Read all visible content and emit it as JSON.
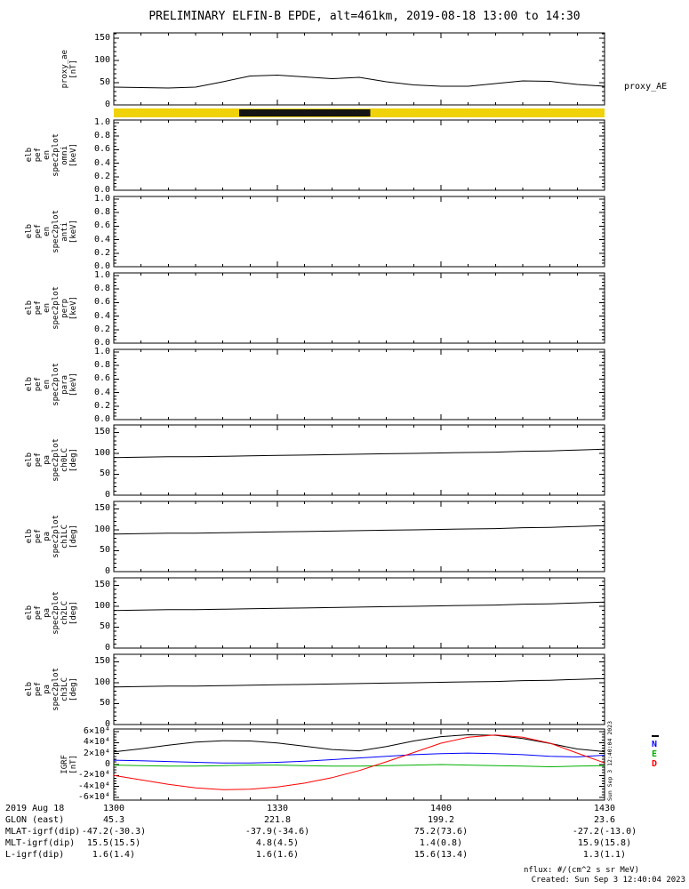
{
  "title": "PRELIMINARY ELFIN-B EPDE, alt=461km, 2019-08-18 13:00 to 14:30",
  "right_axis_label": "proxy_AE",
  "footer": {
    "nflux_note": "nflux: #/(cm^2 s sr MeV)",
    "created": "Created: Sun Sep  3 12:40:04 2023",
    "side_timestamp": "Sun Sep  3 12:40:04 2023"
  },
  "x_minutes": [
    0,
    5,
    10,
    15,
    20,
    25,
    30,
    35,
    40,
    45,
    50,
    55,
    60,
    65,
    70,
    75,
    80,
    85,
    90
  ],
  "x_axis": {
    "major_minutes": [
      0,
      30,
      60,
      90
    ],
    "minor_step_min": 5,
    "labels": [
      "1300",
      "1330",
      "1400",
      "1430"
    ],
    "start": "13:00",
    "end": "14:30"
  },
  "bottom_table": {
    "rows": [
      {
        "label": "2019 Aug 18",
        "values": [
          "1300",
          "1330",
          "1400",
          "1430"
        ]
      },
      {
        "label": "GLON (east)",
        "values": [
          "45.3",
          "221.8",
          "199.2",
          "23.6"
        ]
      },
      {
        "label": "MLAT-igrf(dip)",
        "values": [
          "-47.2(-30.3)",
          "-37.9(-34.6)",
          "75.2(73.6)",
          "-27.2(-13.0)"
        ]
      },
      {
        "label": "MLT-igrf(dip)",
        "values": [
          "15.5(15.5)",
          "4.8(4.5)",
          "1.4(0.8)",
          "15.9(15.8)"
        ]
      },
      {
        "label": "L-igrf(dip)",
        "values": [
          "1.6(1.4)",
          "1.6(1.6)",
          "15.6(13.4)",
          "1.3(1.1)"
        ]
      }
    ]
  },
  "chart_data": [
    {
      "id": "proxy",
      "type": "line",
      "label_lines": [
        "proxy_ae",
        "[nT]"
      ],
      "ylim": [
        0,
        162
      ],
      "ymajor": 50,
      "yminor": 10,
      "yticks": [
        {
          "v": 0,
          "label": "0"
        },
        {
          "v": 50,
          "label": "50"
        },
        {
          "v": 100,
          "label": "100"
        },
        {
          "v": 150,
          "label": "150"
        }
      ],
      "series": [
        {
          "name": "proxy_AE",
          "color": "#000000",
          "values": [
            40,
            39,
            38,
            40,
            52,
            65,
            67,
            63,
            59,
            62,
            52,
            45,
            42,
            42,
            48,
            54,
            53,
            46,
            42
          ]
        }
      ]
    },
    {
      "id": "qbar",
      "type": "interval",
      "base_color": "#f0d20a",
      "segments": [
        {
          "from": 23,
          "to": 47,
          "color": "#141414"
        }
      ]
    },
    {
      "id": "omni",
      "type": "spectrogram-empty",
      "label_lines": [
        "elb",
        "pef",
        "en",
        "spec2plot",
        "omni",
        "[keV]"
      ],
      "ylim": [
        0,
        1.04
      ],
      "ymajor": 0.2,
      "yminor": 0.05,
      "yticks": [
        {
          "v": 1.0,
          "label": "1.0"
        },
        {
          "v": 0.8,
          "label": "0.8"
        },
        {
          "v": 0.6,
          "label": "0.6"
        },
        {
          "v": 0.4,
          "label": "0.4"
        },
        {
          "v": 0.2,
          "label": "0.2"
        },
        {
          "v": 0.0,
          "label": "0.0"
        }
      ],
      "series": []
    },
    {
      "id": "anti",
      "type": "spectrogram-empty",
      "label_lines": [
        "elb",
        "pef",
        "en",
        "spec2plot",
        "anti",
        "[keV]"
      ],
      "ylim": [
        0,
        1.04
      ],
      "ymajor": 0.2,
      "yminor": 0.05,
      "yticks": [
        {
          "v": 1.0,
          "label": "1.0"
        },
        {
          "v": 0.8,
          "label": "0.8"
        },
        {
          "v": 0.6,
          "label": "0.6"
        },
        {
          "v": 0.4,
          "label": "0.4"
        },
        {
          "v": 0.2,
          "label": "0.2"
        },
        {
          "v": 0.0,
          "label": "0.0"
        }
      ],
      "series": []
    },
    {
      "id": "perp",
      "type": "spectrogram-empty",
      "label_lines": [
        "elb",
        "pef",
        "en",
        "spec2plot",
        "perp",
        "[keV]"
      ],
      "ylim": [
        0,
        1.04
      ],
      "ymajor": 0.2,
      "yminor": 0.05,
      "yticks": [
        {
          "v": 1.0,
          "label": "1.0"
        },
        {
          "v": 0.8,
          "label": "0.8"
        },
        {
          "v": 0.6,
          "label": "0.6"
        },
        {
          "v": 0.4,
          "label": "0.4"
        },
        {
          "v": 0.2,
          "label": "0.2"
        },
        {
          "v": 0.0,
          "label": "0.0"
        }
      ],
      "series": []
    },
    {
      "id": "para",
      "type": "spectrogram-empty",
      "label_lines": [
        "elb",
        "pef",
        "en",
        "spec2plot",
        "para",
        "[keV]"
      ],
      "ylim": [
        0,
        1.04
      ],
      "ymajor": 0.2,
      "yminor": 0.05,
      "yticks": [
        {
          "v": 1.0,
          "label": "1.0"
        },
        {
          "v": 0.8,
          "label": "0.8"
        },
        {
          "v": 0.6,
          "label": "0.6"
        },
        {
          "v": 0.4,
          "label": "0.4"
        },
        {
          "v": 0.2,
          "label": "0.2"
        },
        {
          "v": 0.0,
          "label": "0.0"
        }
      ],
      "series": []
    },
    {
      "id": "ch0",
      "type": "line",
      "label_lines": [
        "elb",
        "pef",
        "pa",
        "spec2plot",
        "ch0LC",
        "[deg]"
      ],
      "ylim": [
        0,
        168
      ],
      "ymajor": 50,
      "yminor": 10,
      "yticks": [
        {
          "v": 150,
          "label": "150"
        },
        {
          "v": 100,
          "label": "100"
        },
        {
          "v": 50,
          "label": "50"
        },
        {
          "v": 0,
          "label": "0"
        }
      ],
      "series": [
        {
          "name": "ch0LC",
          "color": "#000000",
          "values": [
            90,
            91,
            92,
            92,
            93,
            94,
            95,
            96,
            97,
            98,
            99,
            100,
            101,
            102,
            103,
            105,
            106,
            108,
            110
          ]
        }
      ]
    },
    {
      "id": "ch1",
      "type": "line",
      "label_lines": [
        "elb",
        "pef",
        "pa",
        "spec2plot",
        "ch1LC",
        "[deg]"
      ],
      "ylim": [
        0,
        168
      ],
      "ymajor": 50,
      "yminor": 10,
      "yticks": [
        {
          "v": 150,
          "label": "150"
        },
        {
          "v": 100,
          "label": "100"
        },
        {
          "v": 50,
          "label": "50"
        },
        {
          "v": 0,
          "label": "0"
        }
      ],
      "series": [
        {
          "name": "ch1LC",
          "color": "#000000",
          "values": [
            90,
            91,
            92,
            92,
            93,
            94,
            95,
            96,
            97,
            98,
            99,
            100,
            101,
            102,
            103,
            105,
            106,
            108,
            110
          ]
        }
      ]
    },
    {
      "id": "ch2",
      "type": "line",
      "label_lines": [
        "elb",
        "pef",
        "pa",
        "spec2plot",
        "ch2LC",
        "[deg]"
      ],
      "ylim": [
        0,
        168
      ],
      "ymajor": 50,
      "yminor": 10,
      "yticks": [
        {
          "v": 150,
          "label": "150"
        },
        {
          "v": 100,
          "label": "100"
        },
        {
          "v": 50,
          "label": "50"
        },
        {
          "v": 0,
          "label": "0"
        }
      ],
      "series": [
        {
          "name": "ch2LC",
          "color": "#000000",
          "values": [
            90,
            91,
            92,
            92,
            93,
            94,
            95,
            96,
            97,
            98,
            99,
            100,
            101,
            102,
            103,
            105,
            106,
            108,
            110
          ]
        }
      ]
    },
    {
      "id": "ch3",
      "type": "line",
      "label_lines": [
        "elb",
        "pef",
        "pa",
        "spec2plot",
        "ch3LC",
        "[deg]"
      ],
      "ylim": [
        0,
        168
      ],
      "ymajor": 50,
      "yminor": 10,
      "yticks": [
        {
          "v": 150,
          "label": "150"
        },
        {
          "v": 100,
          "label": "100"
        },
        {
          "v": 50,
          "label": "50"
        },
        {
          "v": 0,
          "label": "0"
        }
      ],
      "series": [
        {
          "name": "ch3LC",
          "color": "#000000",
          "values": [
            90,
            91,
            92,
            92,
            93,
            94,
            95,
            96,
            97,
            98,
            99,
            100,
            101,
            102,
            103,
            105,
            106,
            108,
            110
          ]
        }
      ]
    },
    {
      "id": "igrf",
      "type": "line",
      "label_lines": [
        "IGRF",
        "[nT]"
      ],
      "ylim": [
        -65000,
        65000
      ],
      "ymajor": 20000,
      "yminor": 5000,
      "yticks": [
        {
          "v": 60000,
          "label": "6×10⁴"
        },
        {
          "v": 40000,
          "label": "4×10⁴"
        },
        {
          "v": 20000,
          "label": "2×10⁴"
        },
        {
          "v": 0,
          "label": "0"
        },
        {
          "v": -20000,
          "label": "-2×10⁴"
        },
        {
          "v": -40000,
          "label": "-4×10⁴"
        },
        {
          "v": -60000,
          "label": "-6×10⁴"
        }
      ],
      "series": [
        {
          "name": "B",
          "color": "#000000",
          "values": [
            23000,
            29000,
            35500,
            41000,
            43500,
            43000,
            39500,
            33500,
            27500,
            25000,
            33000,
            43000,
            51000,
            54500,
            53500,
            47500,
            38500,
            28500,
            23500
          ]
        },
        {
          "name": "N",
          "color": "#0000ff",
          "values": [
            8000,
            7000,
            5500,
            4000,
            3000,
            3000,
            4000,
            6000,
            9000,
            12000,
            15000,
            18000,
            20000,
            21000,
            20000,
            18000,
            15000,
            14000,
            17000
          ]
        },
        {
          "name": "E",
          "color": "#00b000",
          "values": [
            -1000,
            -2000,
            -3000,
            -3000,
            -2000,
            -1000,
            -1000,
            -2000,
            -3000,
            -3000,
            -2000,
            -1000,
            0,
            -1000,
            -2000,
            -3000,
            -4000,
            -3000,
            -2000
          ]
        },
        {
          "name": "D",
          "color": "#ff0000",
          "values": [
            -20000,
            -28000,
            -36000,
            -42500,
            -46000,
            -45000,
            -41000,
            -34000,
            -24000,
            -11000,
            5000,
            22000,
            39000,
            50000,
            54000,
            50000,
            39000,
            21000,
            3000
          ]
        }
      ],
      "legend": [
        {
          "label": "N",
          "color": "#0000ff"
        },
        {
          "label": "E",
          "color": "#00b000"
        },
        {
          "label": "D",
          "color": "#ff0000"
        }
      ]
    }
  ]
}
